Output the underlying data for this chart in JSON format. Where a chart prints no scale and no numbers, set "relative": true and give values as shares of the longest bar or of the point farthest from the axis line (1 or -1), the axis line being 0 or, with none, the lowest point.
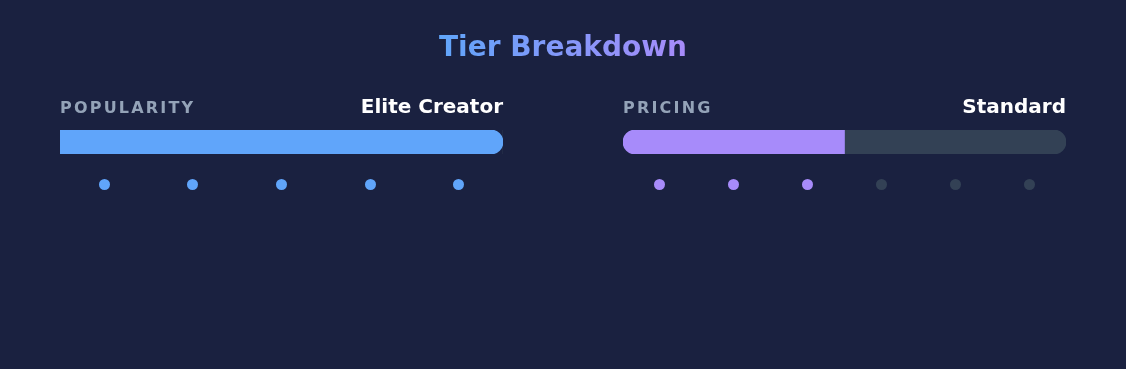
{
  "chart_data": [
    {
      "type": "bar",
      "title": "Tier Breakdown",
      "orientation": "horizontal",
      "relative": true,
      "stacked": true,
      "categories": [
        "POPULARITY"
      ],
      "annotations": [
        "Elite Creator"
      ],
      "series": [
        {
          "color": "#60a5fa",
          "values": [
            1
          ]
        },
        {
          "color": "#334155",
          "values": [
            0
          ]
        }
      ]
    },
    {
      "type": "bar",
      "orientation": "horizontal",
      "relative": true,
      "stacked": true,
      "categories": [
        "PRICING"
      ],
      "annotations": [
        "Standard"
      ],
      "series": [
        {
          "color": "#a78bfa",
          "values": [
            0.5
          ]
        },
        {
          "color": "#334155",
          "values": [
            0.5
          ]
        }
      ]
    }
  ]
}
